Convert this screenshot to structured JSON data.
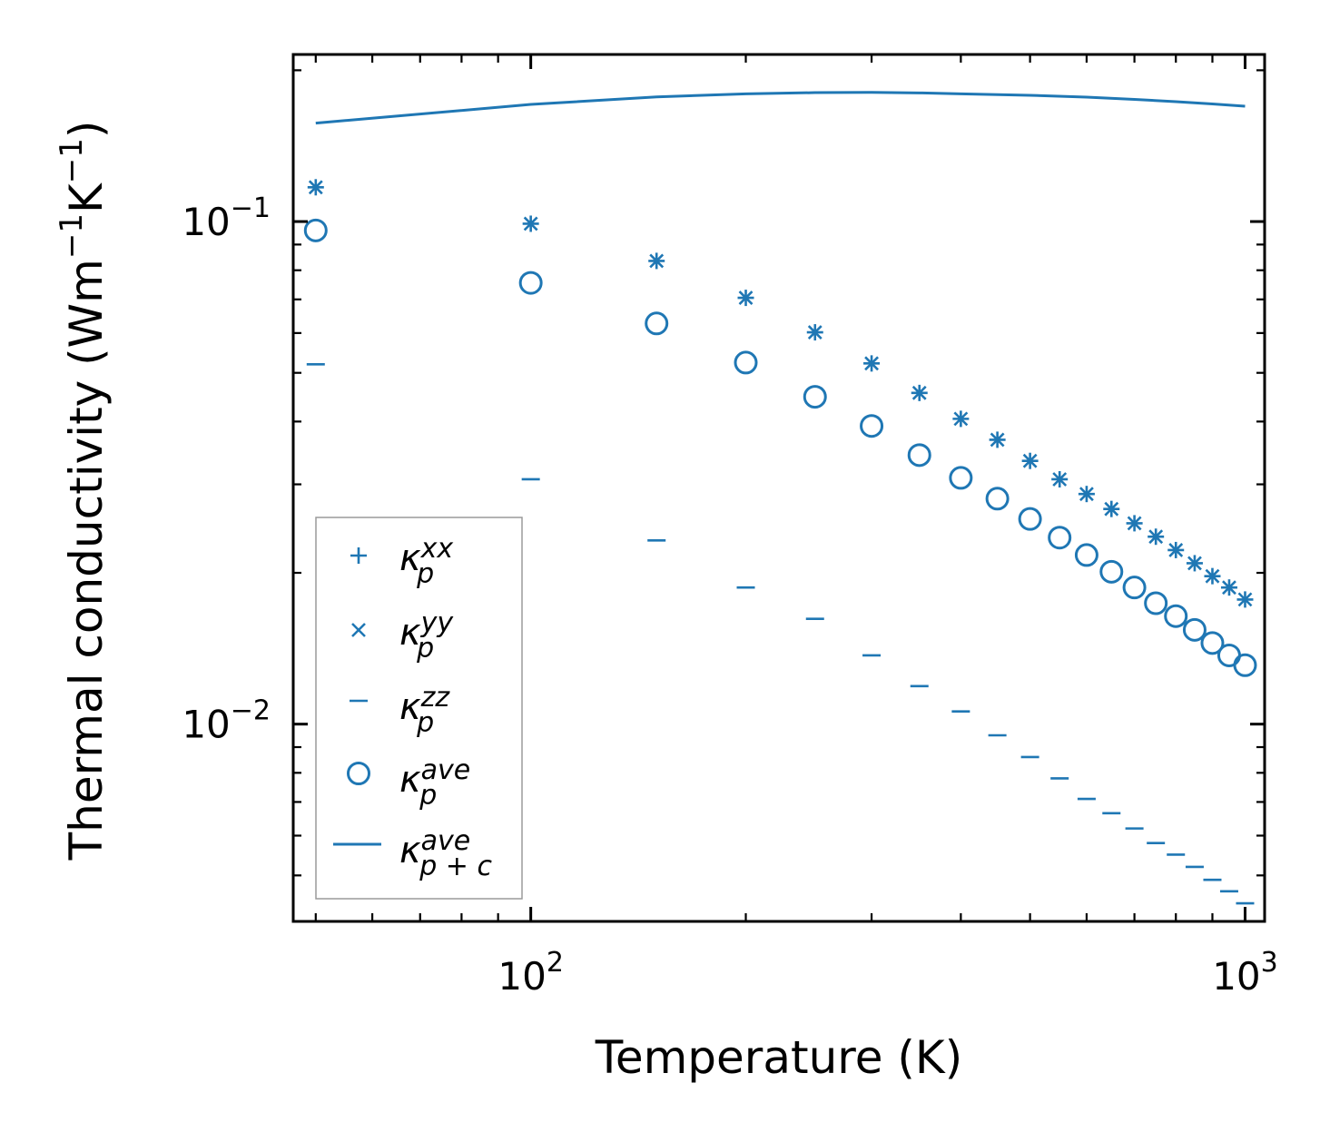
{
  "chart_data": {
    "type": "scatter",
    "title": "",
    "xlabel": "Temperature (K)",
    "ylabel": {
      "text": "Thermal conductivity (Wm",
      "sup1": "−1",
      "mid": "K",
      "sup2": "−1",
      "end": ")"
    },
    "xscale": "log",
    "yscale": "log",
    "xlim": [
      46.5,
      1065
    ],
    "ylim": [
      0.00405,
      0.215
    ],
    "grid": false,
    "legend_position": "lower-left",
    "color": "#1f77b4",
    "x_tick_labels": [
      {
        "value": 100,
        "base": "10",
        "exp": "2"
      },
      {
        "value": 1000,
        "base": "10",
        "exp": "3"
      }
    ],
    "y_tick_labels": [
      {
        "value": 0.1,
        "base": "10",
        "exp": "−1"
      },
      {
        "value": 0.01,
        "base": "10",
        "exp": "−2"
      }
    ],
    "x": [
      50,
      100,
      150,
      200,
      250,
      300,
      350,
      400,
      450,
      500,
      550,
      600,
      650,
      700,
      750,
      800,
      850,
      900,
      950,
      1000
    ],
    "series": [
      {
        "name": "kxx",
        "legend": {
          "base": "κ",
          "sub": "p",
          "sup": "xx"
        },
        "marker": "plus",
        "values": [
          0.117,
          0.099,
          0.0835,
          0.0705,
          0.0602,
          0.0522,
          0.0456,
          0.0405,
          0.0368,
          0.0334,
          0.0307,
          0.0287,
          0.0268,
          0.0251,
          0.0236,
          0.0222,
          0.0209,
          0.0197,
          0.0187,
          0.0177
        ]
      },
      {
        "name": "kyy",
        "legend": {
          "base": "κ",
          "sub": "p",
          "sup": "yy"
        },
        "marker": "x",
        "values": [
          0.117,
          0.099,
          0.0835,
          0.0705,
          0.0602,
          0.0522,
          0.0456,
          0.0405,
          0.0368,
          0.0334,
          0.0307,
          0.0287,
          0.0268,
          0.0251,
          0.0236,
          0.0222,
          0.0209,
          0.0197,
          0.0187,
          0.0177
        ]
      },
      {
        "name": "kzz",
        "legend": {
          "base": "κ",
          "sub": "p",
          "sup": "zz"
        },
        "marker": "hline",
        "values": [
          0.052,
          0.0307,
          0.0232,
          0.0187,
          0.0162,
          0.0137,
          0.0119,
          0.0106,
          0.0095,
          0.0086,
          0.0078,
          0.0071,
          0.00665,
          0.0062,
          0.0058,
          0.0055,
          0.0052,
          0.0049,
          0.00465,
          0.0044
        ]
      },
      {
        "name": "kave",
        "legend": {
          "base": "κ",
          "sub": "p",
          "sup": "ave"
        },
        "marker": "circle",
        "values": [
          0.096,
          0.0755,
          0.0627,
          0.0524,
          0.0448,
          0.0392,
          0.0343,
          0.0309,
          0.0281,
          0.0256,
          0.0235,
          0.0217,
          0.0201,
          0.0187,
          0.0174,
          0.0164,
          0.0154,
          0.0145,
          0.0137,
          0.0131
        ]
      },
      {
        "name": "kpc",
        "legend": {
          "base": "κ",
          "sub": "p + c",
          "sup": "ave"
        },
        "marker": "line",
        "values": [
          0.157,
          0.171,
          0.177,
          0.1795,
          0.1805,
          0.1807,
          0.1803,
          0.1795,
          0.1783,
          0.1768,
          0.175,
          0.1732,
          0.1714,
          0.1696
        ]
      }
    ],
    "kpc_x": [
      50,
      100,
      150,
      200,
      250,
      300,
      350,
      400,
      500,
      600,
      700,
      800,
      900,
      1000
    ]
  }
}
